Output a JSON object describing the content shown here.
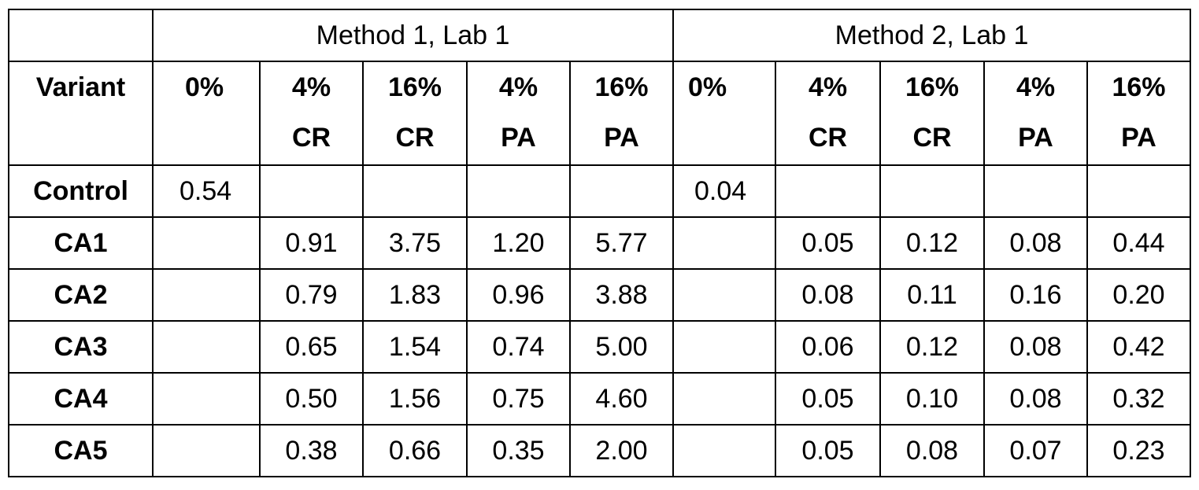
{
  "table": {
    "corner": "",
    "groups": [
      "Method 1, Lab 1",
      "Method 2, Lab 1"
    ],
    "variant_header": "Variant",
    "subheaders": [
      {
        "line1": "0%",
        "line2": ""
      },
      {
        "line1": "4%",
        "line2": "CR"
      },
      {
        "line1": "16%",
        "line2": "CR"
      },
      {
        "line1": "4%",
        "line2": "PA"
      },
      {
        "line1": "16%",
        "line2": "PA"
      },
      {
        "line1": "0%",
        "line2": ""
      },
      {
        "line1": "4%",
        "line2": "CR"
      },
      {
        "line1": "16%",
        "line2": "CR"
      },
      {
        "line1": "4%",
        "line2": "PA"
      },
      {
        "line1": "16%",
        "line2": "PA"
      }
    ],
    "rows": [
      {
        "label": "Control",
        "values": [
          "0.54",
          "",
          "",
          "",
          "",
          "0.04",
          "",
          "",
          "",
          ""
        ]
      },
      {
        "label": "CA1",
        "values": [
          "",
          "0.91",
          "3.75",
          "1.20",
          "5.77",
          "",
          "0.05",
          "0.12",
          "0.08",
          "0.44"
        ]
      },
      {
        "label": "CA2",
        "values": [
          "",
          "0.79",
          "1.83",
          "0.96",
          "3.88",
          "",
          "0.08",
          "0.11",
          "0.16",
          "0.20"
        ]
      },
      {
        "label": "CA3",
        "values": [
          "",
          "0.65",
          "1.54",
          "0.74",
          "5.00",
          "",
          "0.06",
          "0.12",
          "0.08",
          "0.42"
        ]
      },
      {
        "label": "CA4",
        "values": [
          "",
          "0.50",
          "1.56",
          "0.75",
          "4.60",
          "",
          "0.05",
          "0.10",
          "0.08",
          "0.32"
        ]
      },
      {
        "label": "CA5",
        "values": [
          "",
          "0.38",
          "0.66",
          "0.35",
          "2.00",
          "",
          "0.05",
          "0.08",
          "0.07",
          "0.23"
        ]
      }
    ]
  }
}
